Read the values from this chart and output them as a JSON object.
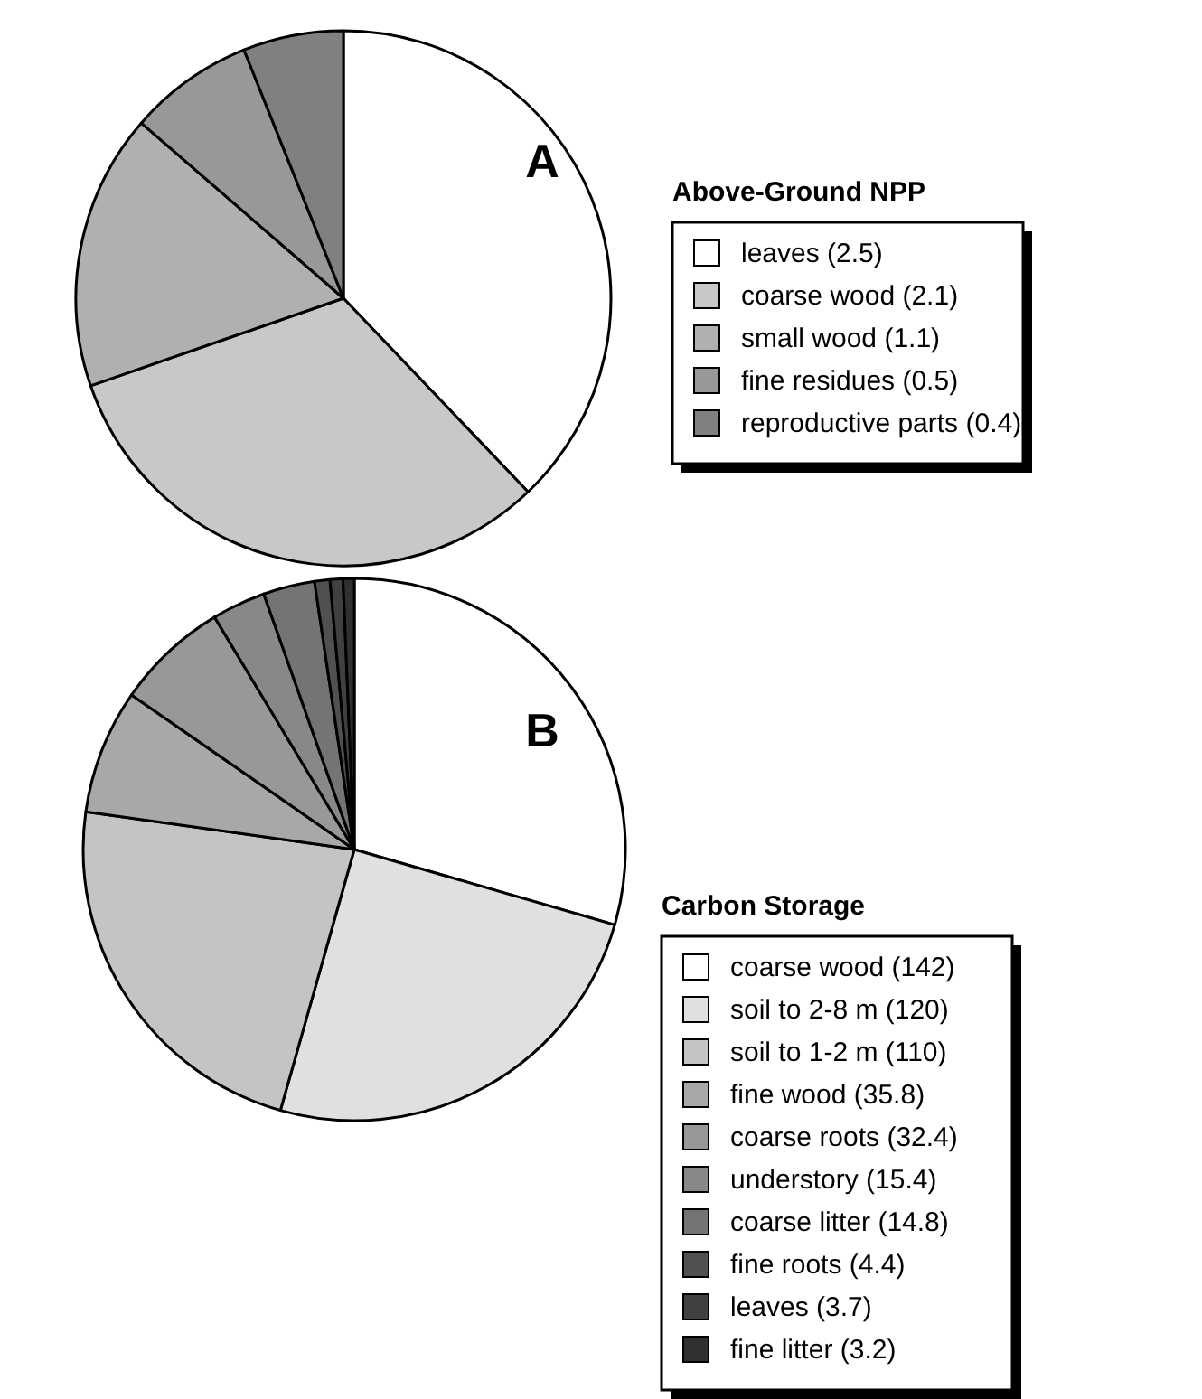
{
  "chart_data": [
    {
      "type": "pie",
      "title": "A",
      "legend_title": "Above-Ground NPP",
      "legend": "right",
      "categories": [
        "leaves (2.5)",
        "coarse wood (2.1)",
        "small wood (1.1)",
        "fine residues (0.5)",
        "reproductive parts (0.4)"
      ],
      "values": [
        2.5,
        2.1,
        1.1,
        0.5,
        0.4
      ],
      "colors": [
        "#ffffff",
        "#c8c8c8",
        "#b0b0b0",
        "#989898",
        "#808080"
      ]
    },
    {
      "type": "pie",
      "title": "B",
      "legend_title": "Carbon Storage",
      "legend": "right",
      "categories": [
        "coarse wood (142)",
        "soil to 2-8 m (120)",
        "soil to 1-2 m (110)",
        "fine wood (35.8)",
        "coarse roots (32.4)",
        "understory (15.4)",
        "coarse litter (14.8)",
        "fine roots (4.4)",
        "leaves (3.7)",
        "fine litter (3.2)"
      ],
      "values": [
        142,
        120,
        110,
        35.8,
        32.4,
        15.4,
        14.8,
        4.4,
        3.7,
        3.2
      ],
      "colors": [
        "#ffffff",
        "#e0e0e0",
        "#c4c4c4",
        "#a8a8a8",
        "#989898",
        "#888888",
        "#747474",
        "#505050",
        "#404040",
        "#303030"
      ]
    }
  ]
}
